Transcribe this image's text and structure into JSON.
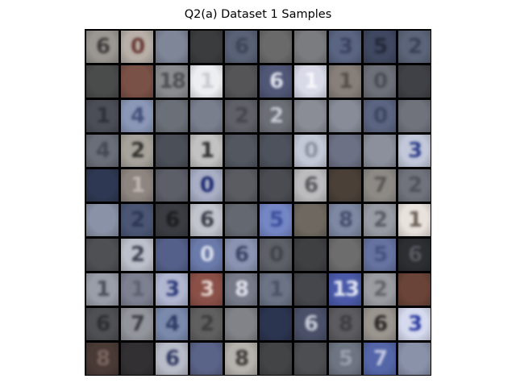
{
  "title": "Q2(a) Dataset 1 Samples",
  "grid": {
    "rows": 10,
    "cols": 10,
    "samples": [
      [
        {
          "bg": "#9a9792",
          "fg": "#3e3c3a",
          "d": "6"
        },
        {
          "bg": "#b7afa8",
          "fg": "#6a3a36",
          "d": "0"
        },
        {
          "bg": "#7f8698",
          "fg": "#5c6070",
          "d": ""
        },
        {
          "bg": "#3b3c3d",
          "fg": "#2a2b2c",
          "d": ""
        },
        {
          "bg": "#596176",
          "fg": "#3e4658",
          "d": "6"
        },
        {
          "bg": "#6a6a6a",
          "fg": "#4e4e4e",
          "d": ""
        },
        {
          "bg": "#7a7c80",
          "fg": "#595b5e",
          "d": ""
        },
        {
          "bg": "#5a6582",
          "fg": "#3a4260",
          "d": "3"
        },
        {
          "bg": "#3f4860",
          "fg": "#24293a",
          "d": "5"
        },
        {
          "bg": "#5b6478",
          "fg": "#3a4156",
          "d": "2"
        }
      ],
      [
        {
          "bg": "#4a4b4b",
          "fg": "#383939",
          "d": ""
        },
        {
          "bg": "#7a5146",
          "fg": "#5a382e",
          "d": ""
        },
        {
          "bg": "#8b8c90",
          "fg": "#4d4e52",
          "d": "18"
        },
        {
          "bg": "#eceef2",
          "fg": "#c8cad0",
          "d": "1"
        },
        {
          "bg": "#555557",
          "fg": "#434345",
          "d": ""
        },
        {
          "bg": "#505776",
          "fg": "#e0e2ec",
          "d": "6"
        },
        {
          "bg": "#d8dae8",
          "fg": "#f7f7fb",
          "d": "1"
        },
        {
          "bg": "#877f7a",
          "fg": "#544e4a",
          "d": "1"
        },
        {
          "bg": "#6d7078",
          "fg": "#4a4d54",
          "d": "0"
        },
        {
          "bg": "#404146",
          "fg": "#2f3034",
          "d": ""
        }
      ],
      [
        {
          "bg": "#4b4e57",
          "fg": "#2e3139",
          "d": "1"
        },
        {
          "bg": "#8a97b6",
          "fg": "#44507a",
          "d": "4"
        },
        {
          "bg": "#6b7078",
          "fg": "#50545c",
          "d": ""
        },
        {
          "bg": "#7a7f8e",
          "fg": "#5e6372",
          "d": ""
        },
        {
          "bg": "#5f6068",
          "fg": "#45464e",
          "d": "2"
        },
        {
          "bg": "#6c6e76",
          "fg": "#c6c9d2",
          "d": "2"
        },
        {
          "bg": "#8a8c96",
          "fg": "#5c5f68",
          "d": ""
        },
        {
          "bg": "#878c98",
          "fg": "#666b76",
          "d": ""
        },
        {
          "bg": "#5b6480",
          "fg": "#3e4660",
          "d": "0"
        },
        {
          "bg": "#70737c",
          "fg": "#575a62",
          "d": ""
        }
      ],
      [
        {
          "bg": "#6a6e78",
          "fg": "#464952",
          "d": "4"
        },
        {
          "bg": "#a7a39c",
          "fg": "#312e2b",
          "d": "2"
        },
        {
          "bg": "#4b4f58",
          "fg": "#3e424b",
          "d": ""
        },
        {
          "bg": "#c2c2c2",
          "fg": "#2e2e2e",
          "d": "1"
        },
        {
          "bg": "#525760",
          "fg": "#3c4048",
          "d": ""
        },
        {
          "bg": "#4d525c",
          "fg": "#363a42",
          "d": ""
        },
        {
          "bg": "#c3c8d6",
          "fg": "#8e93a3",
          "d": "0"
        },
        {
          "bg": "#6c7185",
          "fg": "#4d5166",
          "d": ""
        },
        {
          "bg": "#8b909c",
          "fg": "#626672",
          "d": ""
        },
        {
          "bg": "#c2c8da",
          "fg": "#2e3f8a",
          "d": "3"
        }
      ],
      [
        {
          "bg": "#2f3852",
          "fg": "#222a40",
          "d": ""
        },
        {
          "bg": "#8d8580",
          "fg": "#bfb7b0",
          "d": "1"
        },
        {
          "bg": "#5c5f68",
          "fg": "#464950",
          "d": ""
        },
        {
          "bg": "#a8aec4",
          "fg": "#1e2a72",
          "d": "0"
        },
        {
          "bg": "#5b5c62",
          "fg": "#3f4046",
          "d": ""
        },
        {
          "bg": "#4a4c52",
          "fg": "#36383d",
          "d": ""
        },
        {
          "bg": "#bcbcbe",
          "fg": "#5a5a5e",
          "d": "6"
        },
        {
          "bg": "#4a4038",
          "fg": "#75695e",
          "d": ""
        },
        {
          "bg": "#8d8a86",
          "fg": "#5a5754",
          "d": "7"
        },
        {
          "bg": "#70737c",
          "fg": "#4e5158",
          "d": "2"
        }
      ],
      [
        {
          "bg": "#8992a6",
          "fg": "#6a7388",
          "d": ""
        },
        {
          "bg": "#4a5674",
          "fg": "#2d3654",
          "d": "2"
        },
        {
          "bg": "#3a3c42",
          "fg": "#1c1d20",
          "d": "6"
        },
        {
          "bg": "#c1c4cc",
          "fg": "#3a3d48",
          "d": "6"
        },
        {
          "bg": "#646870",
          "fg": "#4a4e56",
          "d": ""
        },
        {
          "bg": "#7486c4",
          "fg": "#3c4e9c",
          "d": "5"
        },
        {
          "bg": "#6e6860",
          "fg": "#54504a",
          "d": ""
        },
        {
          "bg": "#7e88a2",
          "fg": "#45506e",
          "d": "8"
        },
        {
          "bg": "#989ba3",
          "fg": "#575a62",
          "d": "2"
        },
        {
          "bg": "#e8e2dc",
          "fg": "#6a5f56",
          "d": "1"
        }
      ],
      [
        {
          "bg": "#4e5054",
          "fg": "#393b3e",
          "d": ""
        },
        {
          "bg": "#bcc0ca",
          "fg": "#3c4050",
          "d": "2"
        },
        {
          "bg": "#55608a",
          "fg": "#3a4670",
          "d": ""
        },
        {
          "bg": "#6a7aaa",
          "fg": "#d8ddea",
          "d": "0"
        },
        {
          "bg": "#8a94b2",
          "fg": "#3a4466",
          "d": "6"
        },
        {
          "bg": "#5e6068",
          "fg": "#42444b",
          "d": "0"
        },
        {
          "bg": "#3f4042",
          "fg": "#2e2f31",
          "d": ""
        },
        {
          "bg": "#6e6d6d",
          "fg": "#4e4d4d",
          "d": ""
        },
        {
          "bg": "#6672a0",
          "fg": "#46527e",
          "d": "5"
        },
        {
          "bg": "#2c2e32",
          "fg": "#55585e",
          "d": "6"
        }
      ],
      [
        {
          "bg": "#9a9ea8",
          "fg": "#4a4e58",
          "d": "1"
        },
        {
          "bg": "#7d8090",
          "fg": "#5e6170",
          "d": "1"
        },
        {
          "bg": "#b0b6d0",
          "fg": "#2b3878",
          "d": "3"
        },
        {
          "bg": "#8a5048",
          "fg": "#e4d6d0",
          "d": "3"
        },
        {
          "bg": "#777a88",
          "fg": "#e0e2ec",
          "d": "8"
        },
        {
          "bg": "#6b7385",
          "fg": "#4a5266",
          "d": "1"
        },
        {
          "bg": "#45474c",
          "fg": "#333539",
          "d": ""
        },
        {
          "bg": "#4a5aa8",
          "fg": "#e4e8f4",
          "d": "13"
        },
        {
          "bg": "#9a9ca2",
          "fg": "#616368",
          "d": "2"
        },
        {
          "bg": "#6a4438",
          "fg": "#4a2e25",
          "d": ""
        }
      ],
      [
        {
          "bg": "#4e5054",
          "fg": "#2c2e32",
          "d": "6"
        },
        {
          "bg": "#93959c",
          "fg": "#3a3c42",
          "d": "7"
        },
        {
          "bg": "#7a8aac",
          "fg": "#2e3c66",
          "d": "4"
        },
        {
          "bg": "#616060",
          "fg": "#3d3c3c",
          "d": "2"
        },
        {
          "bg": "#828388",
          "fg": "#5f6066",
          "d": ""
        },
        {
          "bg": "#2c3550",
          "fg": "#222a40",
          "d": ""
        },
        {
          "bg": "#4a5068",
          "fg": "#c6cad6",
          "d": "6"
        },
        {
          "bg": "#5c5c60",
          "fg": "#3e3e42",
          "d": "8"
        },
        {
          "bg": "#9b9590",
          "fg": "#2c2826",
          "d": "6"
        },
        {
          "bg": "#d6daee",
          "fg": "#2a3aa0",
          "d": "3"
        }
      ],
      [
        {
          "bg": "#4a3a36",
          "fg": "#7a6660",
          "d": "8"
        },
        {
          "bg": "#333033",
          "fg": "#4a464a",
          "d": ""
        },
        {
          "bg": "#b8bcc8",
          "fg": "#323a64",
          "d": "6"
        },
        {
          "bg": "#5a6488",
          "fg": "#3a4468",
          "d": ""
        },
        {
          "bg": "#b5b1ac",
          "fg": "#3c3a38",
          "d": "8"
        },
        {
          "bg": "#434446",
          "fg": "#2e2f31",
          "d": ""
        },
        {
          "bg": "#4c4e52",
          "fg": "#393b3e",
          "d": ""
        },
        {
          "bg": "#6e7582",
          "fg": "#9aa0ac",
          "d": "5"
        },
        {
          "bg": "#5466a8",
          "fg": "#c4cae2",
          "d": "7"
        },
        {
          "bg": "#8a92aa",
          "fg": "#6a7290",
          "d": ""
        }
      ]
    ]
  }
}
